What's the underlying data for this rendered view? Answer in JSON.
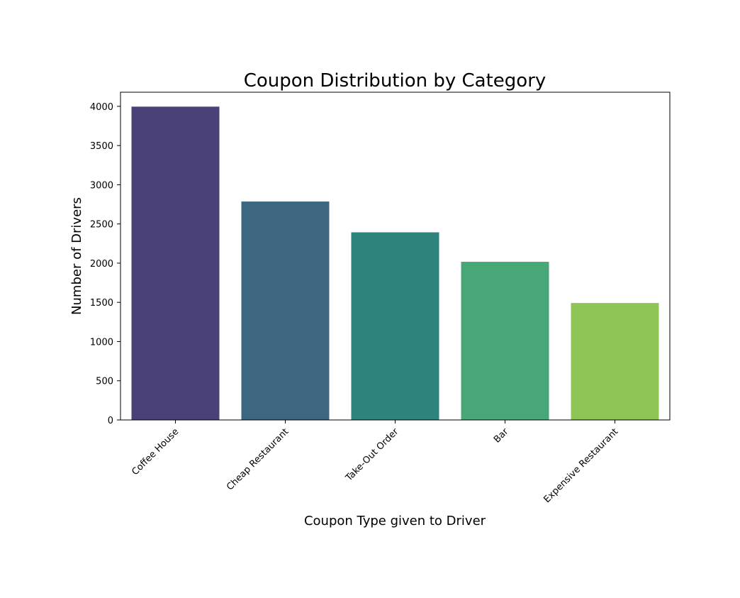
{
  "chart_data": {
    "type": "bar",
    "title": "Coupon Distribution by Category",
    "xlabel": "Coupon Type given to Driver",
    "ylabel": "Number of Drivers",
    "categories": [
      "Coffee House",
      "Cheap Restaurant",
      "Take-Out Order",
      "Bar",
      "Expensive Restaurant"
    ],
    "values": [
      3996,
      2786,
      2393,
      2017,
      1492
    ],
    "colors": [
      "#4a4276",
      "#3d6780",
      "#2e837c",
      "#47a776",
      "#8fc556"
    ],
    "ylim": [
      0,
      4180
    ],
    "yticks": [
      0,
      500,
      1000,
      1500,
      2000,
      2500,
      3000,
      3500,
      4000
    ],
    "ytick_labels": [
      "0",
      "500",
      "1000",
      "1500",
      "2000",
      "2500",
      "3000",
      "3500",
      "4000"
    ],
    "grid": false
  }
}
